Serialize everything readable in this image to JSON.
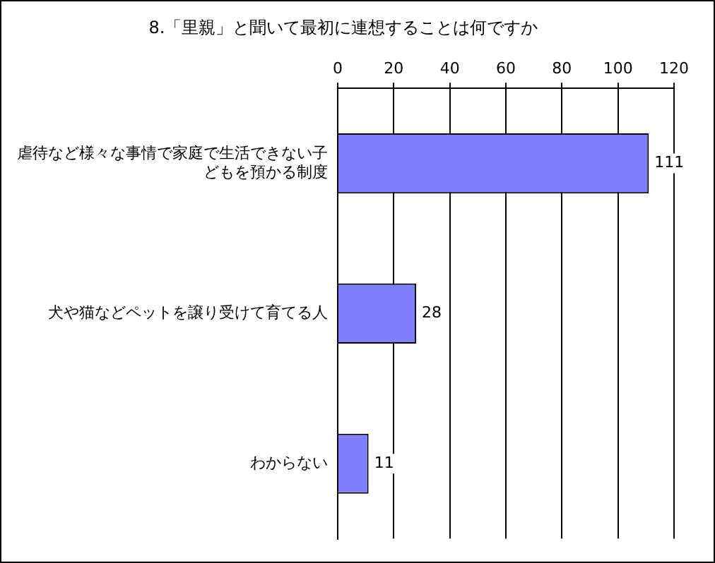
{
  "chart_data": {
    "type": "bar",
    "orientation": "horizontal",
    "title": "8.「里親」と聞いて最初に連想することは何ですか",
    "categories": [
      "虐待など様々な事情で家庭で生活できない子どもを預かる制度",
      "犬や猫などペットを譲り受けて育てる人",
      "わからない"
    ],
    "values": [
      111,
      28,
      11
    ],
    "color": "#8080ff",
    "xlim": [
      0,
      120
    ],
    "xticks": [
      0,
      20,
      40,
      60,
      80,
      100,
      120
    ],
    "grid": "x",
    "data_labels": true,
    "legend": false
  }
}
